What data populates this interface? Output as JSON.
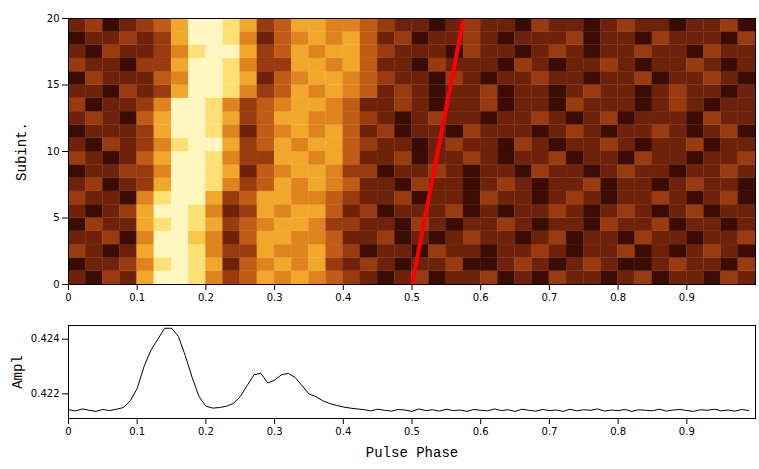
{
  "chart_data": [
    {
      "type": "heatmap",
      "ylabel": "Subint.",
      "xlim": [
        0,
        1
      ],
      "xticks": [
        0,
        0.1,
        0.2,
        0.3,
        0.4,
        0.5,
        0.6,
        0.7,
        0.8,
        0.9
      ],
      "ylim": [
        0,
        20
      ],
      "yticks": [
        0,
        5,
        10,
        15,
        20
      ],
      "cell_x_edges": [
        0,
        0.025,
        0.05,
        0.075,
        0.1,
        0.125,
        0.15,
        0.175,
        0.2,
        0.225,
        0.25,
        0.275,
        0.3,
        0.325,
        0.35,
        0.375,
        0.4,
        0.425,
        0.45,
        0.475,
        0.5,
        0.525,
        0.55,
        0.575,
        0.6,
        0.625,
        0.65,
        0.675,
        0.7,
        0.725,
        0.75,
        0.775,
        0.8,
        0.825,
        0.85,
        0.875,
        0.9,
        0.925,
        0.95,
        0.975,
        1
      ],
      "cell_y_edges": [
        0,
        1,
        2,
        3,
        4,
        5,
        6,
        7,
        8,
        9,
        10,
        11,
        12,
        13,
        14,
        15,
        16,
        17,
        18,
        19,
        20
      ],
      "cells": [
        [
          2,
          1,
          3,
          2,
          6,
          9,
          9,
          8,
          5,
          3,
          4,
          6,
          5,
          6,
          5,
          4,
          3,
          2,
          1,
          2,
          3,
          1,
          2,
          2,
          3,
          1,
          2,
          1,
          3,
          2,
          2,
          1,
          2,
          3,
          1,
          2,
          2,
          1,
          3,
          2
        ],
        [
          1,
          2,
          2,
          3,
          5,
          8,
          9,
          8,
          6,
          2,
          4,
          5,
          6,
          5,
          6,
          3,
          2,
          3,
          2,
          1,
          2,
          2,
          3,
          1,
          1,
          2,
          3,
          2,
          1,
          2,
          3,
          2,
          1,
          1,
          2,
          3,
          2,
          2,
          1,
          3
        ],
        [
          3,
          2,
          1,
          2,
          6,
          9,
          9,
          8,
          5,
          3,
          3,
          6,
          5,
          5,
          6,
          4,
          3,
          1,
          2,
          2,
          1,
          3,
          2,
          2,
          1,
          2,
          2,
          3,
          2,
          1,
          2,
          2,
          3,
          1,
          2,
          1,
          2,
          3,
          2,
          1
        ],
        [
          2,
          2,
          3,
          1,
          5,
          9,
          9,
          7,
          5,
          2,
          4,
          6,
          6,
          5,
          5,
          4,
          2,
          2,
          3,
          1,
          2,
          1,
          2,
          3,
          2,
          2,
          1,
          2,
          3,
          1,
          2,
          2,
          1,
          3,
          2,
          2,
          1,
          2,
          2,
          3
        ],
        [
          1,
          3,
          2,
          2,
          6,
          8,
          9,
          8,
          6,
          3,
          4,
          5,
          6,
          6,
          5,
          3,
          3,
          2,
          2,
          1,
          3,
          2,
          1,
          2,
          2,
          3,
          2,
          1,
          2,
          2,
          1,
          3,
          2,
          2,
          3,
          1,
          2,
          2,
          1,
          2
        ],
        [
          2,
          1,
          2,
          3,
          6,
          9,
          9,
          8,
          5,
          2,
          3,
          6,
          5,
          6,
          6,
          4,
          2,
          3,
          1,
          2,
          2,
          2,
          3,
          1,
          2,
          1,
          2,
          2,
          3,
          2,
          1,
          2,
          3,
          2,
          1,
          2,
          3,
          1,
          2,
          2
        ],
        [
          3,
          2,
          2,
          1,
          5,
          8,
          9,
          9,
          6,
          3,
          4,
          6,
          6,
          5,
          5,
          4,
          3,
          2,
          2,
          3,
          1,
          2,
          2,
          1,
          3,
          2,
          2,
          1,
          2,
          3,
          2,
          1,
          2,
          2,
          3,
          2,
          1,
          2,
          3,
          1
        ],
        [
          2,
          3,
          1,
          2,
          3,
          6,
          9,
          9,
          8,
          5,
          3,
          4,
          6,
          5,
          6,
          5,
          4,
          2,
          2,
          1,
          3,
          2,
          2,
          1,
          2,
          3,
          2,
          1,
          2,
          2,
          3,
          1,
          2,
          2,
          1,
          2,
          3,
          2,
          2,
          1
        ],
        [
          1,
          2,
          2,
          3,
          3,
          5,
          9,
          9,
          8,
          6,
          2,
          4,
          5,
          6,
          6,
          5,
          3,
          3,
          1,
          2,
          2,
          3,
          2,
          1,
          2,
          2,
          1,
          3,
          2,
          2,
          1,
          2,
          3,
          2,
          2,
          1,
          2,
          2,
          3,
          2
        ],
        [
          3,
          2,
          1,
          2,
          4,
          6,
          9,
          9,
          8,
          5,
          3,
          3,
          6,
          6,
          5,
          6,
          4,
          2,
          2,
          3,
          1,
          2,
          2,
          3,
          2,
          1,
          2,
          2,
          3,
          1,
          2,
          2,
          1,
          3,
          2,
          2,
          1,
          2,
          2,
          3
        ],
        [
          2,
          1,
          3,
          2,
          3,
          5,
          8,
          9,
          9,
          6,
          3,
          4,
          6,
          5,
          6,
          6,
          4,
          3,
          2,
          2,
          1,
          2,
          3,
          2,
          2,
          1,
          3,
          2,
          1,
          2,
          2,
          3,
          2,
          1,
          2,
          2,
          3,
          1,
          2,
          2
        ],
        [
          1,
          2,
          2,
          2,
          3,
          6,
          9,
          9,
          8,
          5,
          2,
          4,
          5,
          6,
          5,
          6,
          4,
          2,
          3,
          1,
          2,
          2,
          1,
          3,
          2,
          2,
          2,
          1,
          2,
          3,
          2,
          1,
          2,
          2,
          3,
          2,
          1,
          2,
          3,
          1
        ],
        [
          2,
          3,
          2,
          1,
          4,
          6,
          9,
          9,
          8,
          6,
          3,
          4,
          6,
          6,
          5,
          5,
          4,
          3,
          2,
          1,
          2,
          3,
          2,
          2,
          1,
          2,
          2,
          3,
          2,
          1,
          2,
          3,
          1,
          2,
          2,
          2,
          1,
          3,
          2,
          2
        ],
        [
          3,
          1,
          2,
          2,
          3,
          5,
          9,
          9,
          8,
          5,
          3,
          4,
          5,
          6,
          6,
          5,
          4,
          2,
          2,
          3,
          2,
          1,
          2,
          2,
          3,
          1,
          2,
          2,
          1,
          3,
          2,
          2,
          2,
          1,
          2,
          3,
          2,
          1,
          2,
          2
        ],
        [
          2,
          2,
          1,
          3,
          2,
          3,
          6,
          9,
          9,
          8,
          5,
          3,
          4,
          6,
          5,
          6,
          5,
          4,
          2,
          3,
          2,
          1,
          2,
          2,
          3,
          1,
          2,
          2,
          1,
          2,
          3,
          2,
          2,
          1,
          2,
          3,
          2,
          2,
          1,
          2
        ],
        [
          1,
          3,
          2,
          2,
          2,
          4,
          5,
          9,
          9,
          8,
          6,
          2,
          4,
          5,
          6,
          6,
          5,
          4,
          3,
          2,
          2,
          1,
          3,
          2,
          1,
          2,
          2,
          3,
          2,
          2,
          1,
          2,
          2,
          3,
          1,
          2,
          2,
          3,
          2,
          1
        ],
        [
          3,
          2,
          2,
          1,
          3,
          3,
          6,
          9,
          9,
          8,
          5,
          3,
          3,
          6,
          6,
          5,
          6,
          4,
          2,
          2,
          1,
          3,
          2,
          2,
          2,
          1,
          3,
          2,
          1,
          2,
          2,
          3,
          2,
          1,
          2,
          2,
          3,
          2,
          1,
          2
        ],
        [
          2,
          1,
          3,
          2,
          2,
          3,
          5,
          8,
          9,
          9,
          6,
          3,
          4,
          6,
          5,
          6,
          6,
          4,
          3,
          2,
          2,
          2,
          1,
          3,
          2,
          2,
          1,
          2,
          3,
          2,
          1,
          2,
          2,
          3,
          2,
          2,
          1,
          3,
          2,
          2
        ],
        [
          1,
          2,
          2,
          3,
          2,
          3,
          6,
          9,
          9,
          8,
          5,
          2,
          4,
          5,
          6,
          5,
          6,
          4,
          2,
          3,
          1,
          2,
          2,
          3,
          2,
          1,
          2,
          2,
          2,
          3,
          1,
          2,
          2,
          1,
          3,
          2,
          2,
          2,
          1,
          3
        ],
        [
          2,
          3,
          1,
          2,
          3,
          4,
          6,
          9,
          9,
          8,
          6,
          3,
          4,
          6,
          6,
          5,
          5,
          4,
          3,
          2,
          2,
          1,
          2,
          3,
          2,
          2,
          1,
          3,
          2,
          2,
          1,
          2,
          3,
          2,
          2,
          1,
          2,
          2,
          3,
          1
        ]
      ],
      "overlay_line": {
        "x": [
          0.5,
          0.575
        ],
        "y": [
          0,
          20
        ],
        "color": "#ff0000"
      }
    },
    {
      "type": "line",
      "xlabel": "Pulse Phase",
      "ylabel": "Ampl",
      "xlim": [
        0,
        1
      ],
      "xticks": [
        0,
        0.1,
        0.2,
        0.3,
        0.4,
        0.5,
        0.6,
        0.7,
        0.8,
        0.9
      ],
      "ylim": [
        0.4211,
        0.4245
      ],
      "yticks": [
        0.422,
        0.424
      ],
      "color": "#000000",
      "x": [
        0,
        0.01,
        0.02,
        0.03,
        0.04,
        0.05,
        0.06,
        0.07,
        0.08,
        0.09,
        0.1,
        0.11,
        0.12,
        0.13,
        0.14,
        0.15,
        0.16,
        0.17,
        0.18,
        0.19,
        0.2,
        0.21,
        0.22,
        0.23,
        0.24,
        0.25,
        0.26,
        0.27,
        0.28,
        0.29,
        0.3,
        0.31,
        0.32,
        0.33,
        0.34,
        0.35,
        0.36,
        0.37,
        0.38,
        0.39,
        0.4,
        0.41,
        0.42,
        0.43,
        0.44,
        0.45,
        0.46,
        0.47,
        0.48,
        0.49,
        0.5,
        0.51,
        0.52,
        0.53,
        0.54,
        0.55,
        0.56,
        0.57,
        0.58,
        0.59,
        0.6,
        0.61,
        0.62,
        0.63,
        0.64,
        0.65,
        0.66,
        0.67,
        0.68,
        0.69,
        0.7,
        0.71,
        0.72,
        0.73,
        0.74,
        0.75,
        0.76,
        0.77,
        0.78,
        0.79,
        0.8,
        0.81,
        0.82,
        0.83,
        0.84,
        0.85,
        0.86,
        0.87,
        0.88,
        0.89,
        0.9,
        0.91,
        0.92,
        0.93,
        0.94,
        0.95,
        0.96,
        0.97,
        0.98,
        0.99
      ],
      "values": [
        0.42142,
        0.42138,
        0.42145,
        0.4214,
        0.42136,
        0.42143,
        0.42139,
        0.42144,
        0.4215,
        0.42175,
        0.4222,
        0.423,
        0.4236,
        0.424,
        0.4244,
        0.4244,
        0.4241,
        0.4234,
        0.4226,
        0.4219,
        0.42155,
        0.42148,
        0.4215,
        0.42155,
        0.42165,
        0.4219,
        0.4223,
        0.4227,
        0.42275,
        0.4224,
        0.4225,
        0.4227,
        0.42275,
        0.4226,
        0.4223,
        0.422,
        0.4219,
        0.42175,
        0.42165,
        0.42158,
        0.42152,
        0.42148,
        0.42145,
        0.42142,
        0.42138,
        0.42144,
        0.4214,
        0.42137,
        0.42143,
        0.42141,
        0.42136,
        0.42145,
        0.42139,
        0.42142,
        0.42137,
        0.42144,
        0.42139,
        0.42141,
        0.42136,
        0.42143,
        0.4214,
        0.42138,
        0.42145,
        0.42139,
        0.42142,
        0.42136,
        0.42144,
        0.4214,
        0.42137,
        0.42143,
        0.42139,
        0.42141,
        0.42136,
        0.42144,
        0.42138,
        0.42142,
        0.4214,
        0.42145,
        0.42137,
        0.42141,
        0.42139,
        0.42143,
        0.42136,
        0.42142,
        0.4214,
        0.42138,
        0.42144,
        0.42137,
        0.42141,
        0.42143,
        0.42139,
        0.42136,
        0.42142,
        0.4214,
        0.42144,
        0.42138,
        0.42141,
        0.42137,
        0.42143,
        0.42139
      ]
    }
  ]
}
